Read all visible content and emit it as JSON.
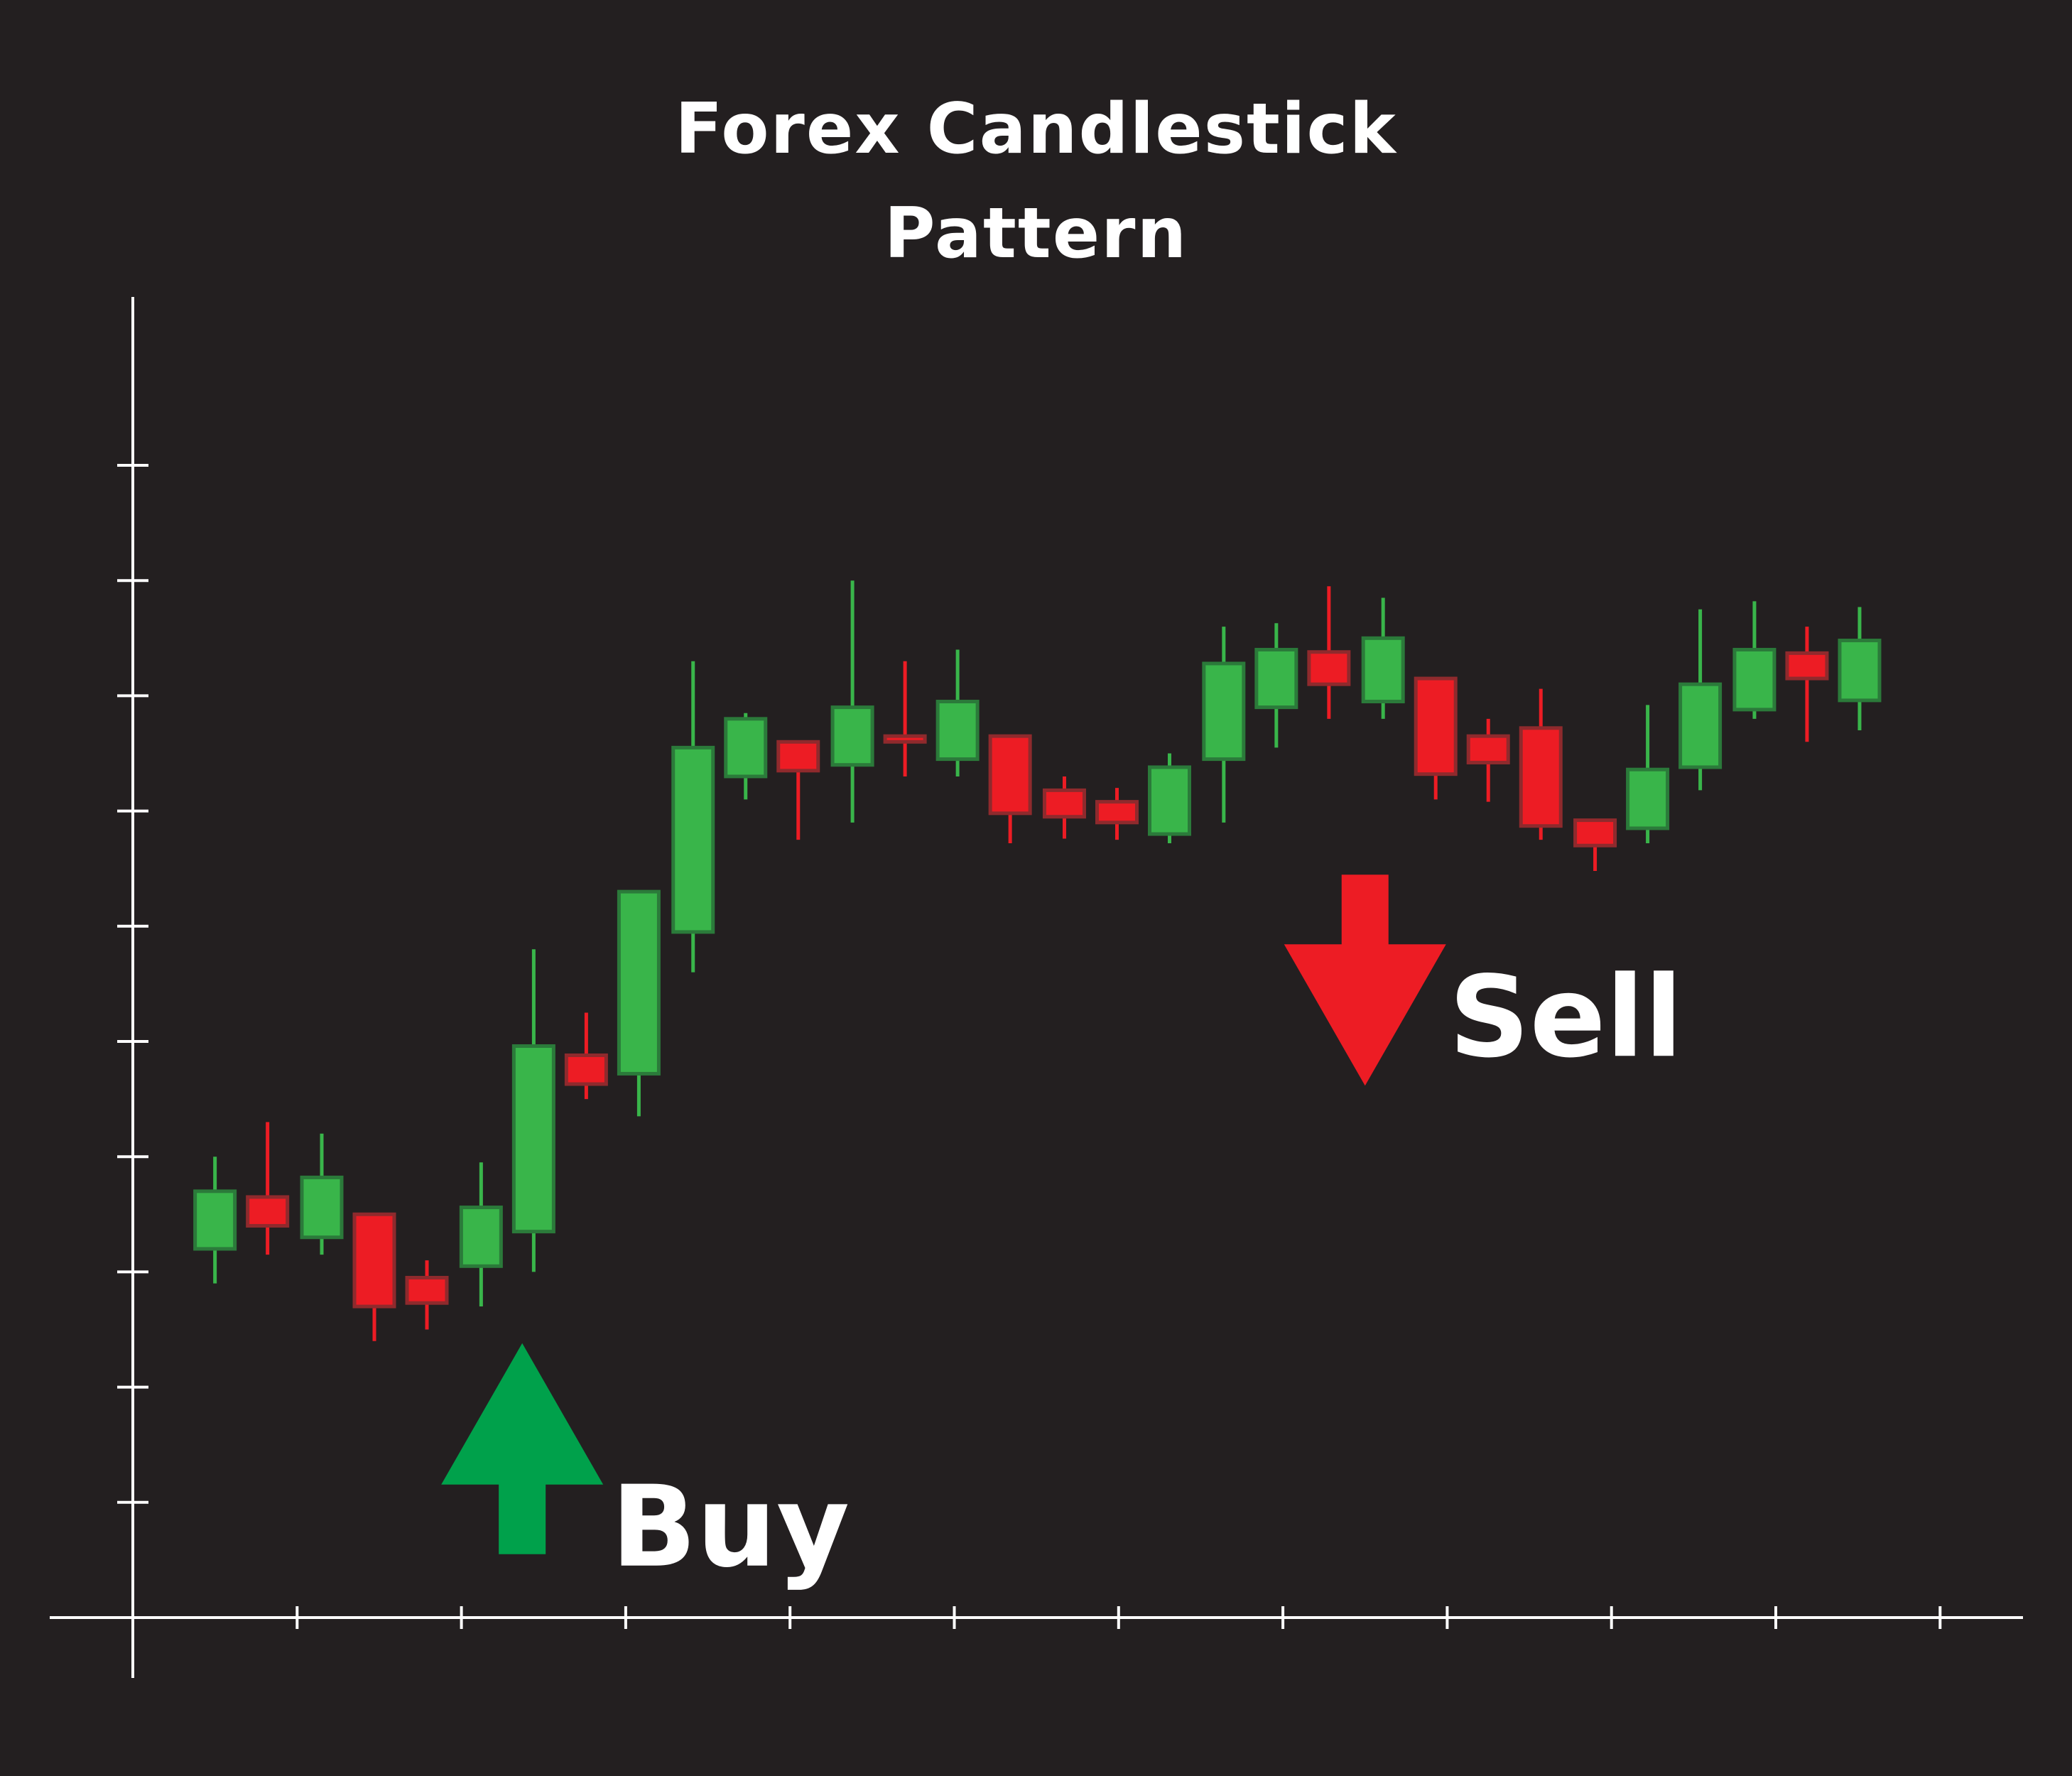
{
  "chart_data": {
    "type": "candlestick",
    "title": [
      "Forex Candlestick",
      "Pattern"
    ],
    "xlabel": "",
    "ylabel": "",
    "tick_labels_shown": false,
    "y_ticks": [
      1,
      2,
      3,
      4,
      5,
      6,
      7,
      8,
      9,
      10
    ],
    "ylim": [
      0,
      12
    ],
    "x_ticks": [
      1,
      2,
      3,
      4,
      5,
      6,
      7,
      8,
      9,
      10,
      11
    ],
    "xlim": [
      0,
      11.5
    ],
    "grid": false,
    "colors": {
      "background": "#231f20",
      "axis": "#ffffff",
      "bull": "#39b54a",
      "bull_edge": "#2b7a3a",
      "bear": "#ed1c24",
      "bear_edge": "#8f2a2d",
      "buy_arrow": "#00a14b",
      "sell_arrow": "#ed1c24"
    },
    "candles": [
      {
        "x": 0.5,
        "open": 3.2,
        "high": 4.0,
        "low": 2.9,
        "close": 3.7
      },
      {
        "x": 0.82,
        "open": 3.65,
        "high": 4.3,
        "low": 3.15,
        "close": 3.4
      },
      {
        "x": 1.15,
        "open": 3.3,
        "high": 4.2,
        "low": 3.15,
        "close": 3.82
      },
      {
        "x": 1.47,
        "open": 3.5,
        "high": 3.5,
        "low": 2.4,
        "close": 2.7
      },
      {
        "x": 1.79,
        "open": 2.95,
        "high": 3.1,
        "low": 2.5,
        "close": 2.73
      },
      {
        "x": 2.12,
        "open": 3.05,
        "high": 3.95,
        "low": 2.7,
        "close": 3.56
      },
      {
        "x": 2.44,
        "open": 3.35,
        "high": 5.8,
        "low": 3.0,
        "close": 4.96
      },
      {
        "x": 2.76,
        "open": 4.88,
        "high": 5.25,
        "low": 4.5,
        "close": 4.63
      },
      {
        "x": 3.08,
        "open": 4.72,
        "high": 6.3,
        "low": 4.35,
        "close": 6.3
      },
      {
        "x": 3.41,
        "open": 5.95,
        "high": 8.3,
        "low": 5.6,
        "close": 7.55
      },
      {
        "x": 3.73,
        "open": 7.3,
        "high": 7.85,
        "low": 7.1,
        "close": 7.8
      },
      {
        "x": 4.05,
        "open": 7.6,
        "high": 7.6,
        "low": 6.75,
        "close": 7.35
      },
      {
        "x": 4.38,
        "open": 7.4,
        "high": 9.0,
        "low": 6.9,
        "close": 7.9
      },
      {
        "x": 4.7,
        "open": 7.65,
        "high": 8.3,
        "low": 7.3,
        "close": 7.6
      },
      {
        "x": 5.02,
        "open": 7.45,
        "high": 8.4,
        "low": 7.3,
        "close": 7.95
      },
      {
        "x": 5.34,
        "open": 7.65,
        "high": 7.65,
        "low": 6.72,
        "close": 6.98
      },
      {
        "x": 5.67,
        "open": 7.18,
        "high": 7.3,
        "low": 6.76,
        "close": 6.95
      },
      {
        "x": 5.99,
        "open": 7.08,
        "high": 7.2,
        "low": 6.75,
        "close": 6.9
      },
      {
        "x": 6.31,
        "open": 6.8,
        "high": 7.5,
        "low": 6.72,
        "close": 7.38
      },
      {
        "x": 6.64,
        "open": 7.45,
        "high": 8.6,
        "low": 6.9,
        "close": 8.28
      },
      {
        "x": 6.96,
        "open": 7.9,
        "high": 8.63,
        "low": 7.55,
        "close": 8.4
      },
      {
        "x": 7.28,
        "open": 8.38,
        "high": 8.95,
        "low": 7.8,
        "close": 8.1
      },
      {
        "x": 7.61,
        "open": 7.95,
        "high": 8.85,
        "low": 7.8,
        "close": 8.5
      },
      {
        "x": 7.93,
        "open": 8.15,
        "high": 8.15,
        "low": 7.1,
        "close": 7.32
      },
      {
        "x": 8.25,
        "open": 7.65,
        "high": 7.8,
        "low": 7.08,
        "close": 7.42
      },
      {
        "x": 8.57,
        "open": 7.72,
        "high": 8.06,
        "low": 6.75,
        "close": 6.87
      },
      {
        "x": 8.9,
        "open": 6.92,
        "high": 6.92,
        "low": 6.48,
        "close": 6.7
      },
      {
        "x": 9.22,
        "open": 6.85,
        "high": 7.92,
        "low": 6.72,
        "close": 7.36
      },
      {
        "x": 9.54,
        "open": 7.38,
        "high": 8.75,
        "low": 7.18,
        "close": 8.1
      },
      {
        "x": 9.87,
        "open": 7.88,
        "high": 8.82,
        "low": 7.8,
        "close": 8.4
      },
      {
        "x": 10.19,
        "open": 8.37,
        "high": 8.6,
        "low": 7.6,
        "close": 8.15
      },
      {
        "x": 10.51,
        "open": 7.96,
        "high": 8.77,
        "low": 7.7,
        "close": 8.48
      }
    ],
    "annotations": [
      {
        "label": "Buy",
        "type": "up-arrow",
        "x": 2.37,
        "y": 0.55
      },
      {
        "label": "Sell",
        "type": "down-arrow",
        "x": 7.5,
        "y": 10.8
      }
    ]
  }
}
